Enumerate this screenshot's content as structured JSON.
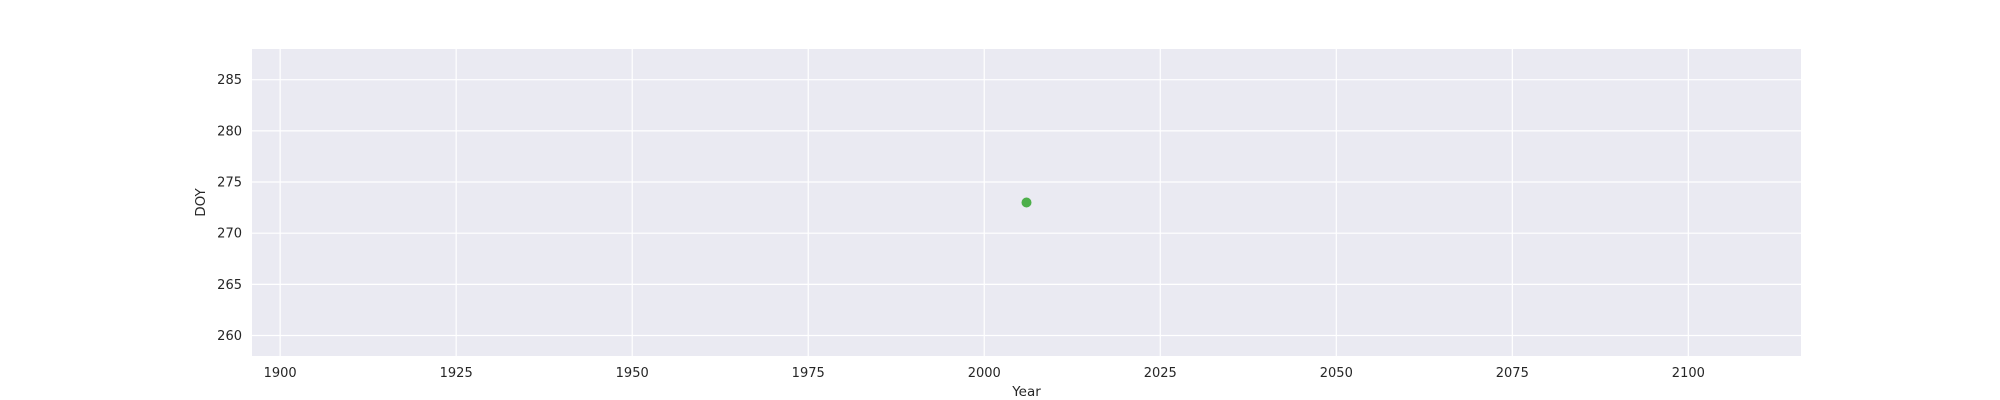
{
  "chart_data": {
    "type": "scatter",
    "xlabel": "Year",
    "ylabel": "DOY",
    "xlim": [
      1896,
      2116
    ],
    "ylim": [
      258,
      288
    ],
    "xticks": [
      1900,
      1925,
      1950,
      1975,
      2000,
      2025,
      2050,
      2075,
      2100
    ],
    "yticks": [
      260,
      265,
      270,
      275,
      280,
      285
    ],
    "grid": true,
    "legend": "none",
    "colors": {
      "plot_background": "#eaeaf2",
      "grid": "#ffffff",
      "point": "#4daf4a"
    },
    "series": [
      {
        "x": [
          2006
        ],
        "y": [
          273
        ]
      }
    ]
  }
}
